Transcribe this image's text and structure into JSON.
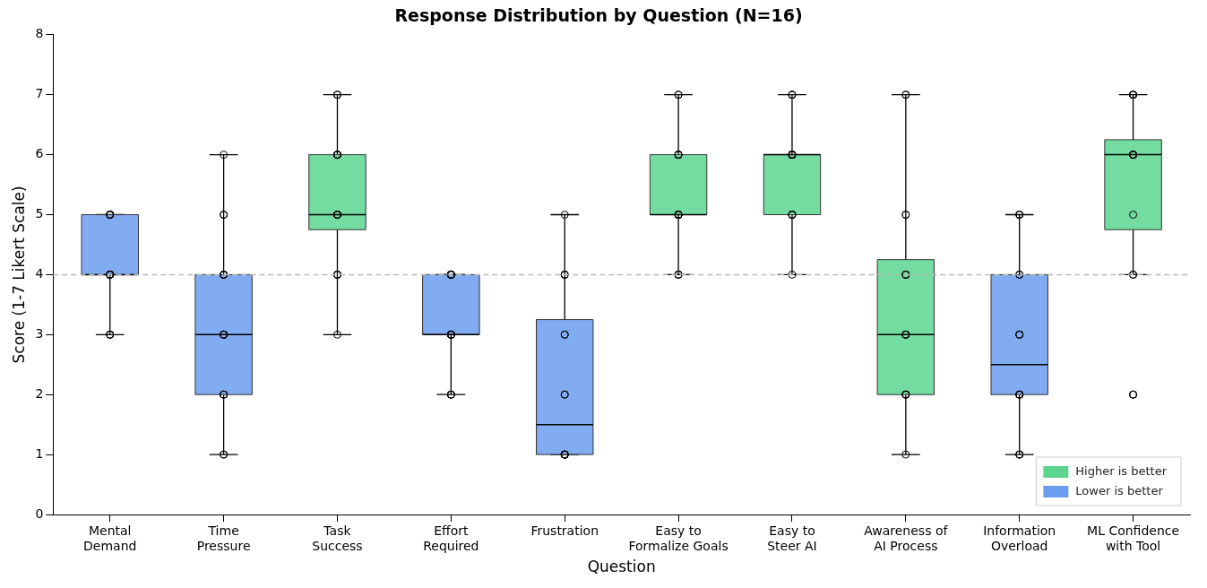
{
  "chart_data": {
    "type": "box",
    "title": "Response Distribution by Question (N=16)",
    "xlabel": "Question",
    "ylabel": "Score (1-7 Likert Scale)",
    "categories": [
      "Mental\nDemand",
      "Time\nPressure",
      "Task\nSuccess",
      "Effort\nRequired",
      "Frustration",
      "Easy to\nFormalize Goals",
      "Easy to\nSteer AI",
      "Awareness of\nAI Process",
      "Information\nOverload",
      "ML Confidence\nwith Tool"
    ],
    "ylim": [
      0,
      8
    ],
    "yticks": [
      0,
      1,
      2,
      3,
      4,
      5,
      6,
      7,
      8
    ],
    "grid": false,
    "legend": "bottom right",
    "marker": "circle",
    "ref_lines": [
      {
        "axis": "y",
        "value": 4,
        "color": "#bbbbbb",
        "line_style": "dashed"
      }
    ],
    "series": [
      {
        "name": "Higher is better",
        "color": "#5cd68f",
        "boxes": [
          null,
          null,
          {
            "low": 3,
            "q1": 4.75,
            "median": 5,
            "q3": 6,
            "high": 7
          },
          null,
          null,
          {
            "low": 4,
            "q1": 5,
            "median": 5,
            "q3": 6,
            "high": 7
          },
          {
            "low": 4,
            "q1": 5,
            "median": 6,
            "q3": 6,
            "high": 7
          },
          {
            "low": 1,
            "q1": 2,
            "median": 3,
            "q3": 4.25,
            "high": 7
          },
          null,
          {
            "low": 4,
            "q1": 4.75,
            "median": 6,
            "q3": 6.25,
            "high": 7
          }
        ]
      },
      {
        "name": "Lower is better",
        "color": "#6c9ef0",
        "boxes": [
          {
            "low": 3,
            "q1": 4,
            "median": 4,
            "q3": 5,
            "high": 5
          },
          {
            "low": 1,
            "q1": 2,
            "median": 3,
            "q3": 4,
            "high": 6
          },
          null,
          {
            "low": 2,
            "q1": 3,
            "median": 3,
            "q3": 4,
            "high": 4
          },
          {
            "low": 1,
            "q1": 1,
            "median": 1.5,
            "q3": 3.25,
            "high": 5
          },
          null,
          null,
          null,
          {
            "low": 1,
            "q1": 2,
            "median": 2.5,
            "q3": 4,
            "high": 5
          },
          null
        ]
      },
      {
        "type": "scatter",
        "color": "#000000",
        "x": [
          "Mental\nDemand",
          "Mental\nDemand",
          "Mental\nDemand",
          "Mental\nDemand",
          "Mental\nDemand",
          "Mental\nDemand",
          "Mental\nDemand",
          "Mental\nDemand",
          "Mental\nDemand",
          "Mental\nDemand",
          "Mental\nDemand",
          "Mental\nDemand",
          "Mental\nDemand",
          "Mental\nDemand",
          "Mental\nDemand",
          "Mental\nDemand",
          "Time\nPressure",
          "Time\nPressure",
          "Time\nPressure",
          "Time\nPressure",
          "Time\nPressure",
          "Time\nPressure",
          "Time\nPressure",
          "Time\nPressure",
          "Time\nPressure",
          "Time\nPressure",
          "Time\nPressure",
          "Time\nPressure",
          "Time\nPressure",
          "Time\nPressure",
          "Time\nPressure",
          "Time\nPressure",
          "Task\nSuccess",
          "Task\nSuccess",
          "Task\nSuccess",
          "Task\nSuccess",
          "Task\nSuccess",
          "Task\nSuccess",
          "Task\nSuccess",
          "Task\nSuccess",
          "Task\nSuccess",
          "Task\nSuccess",
          "Task\nSuccess",
          "Task\nSuccess",
          "Task\nSuccess",
          "Task\nSuccess",
          "Task\nSuccess",
          "Task\nSuccess",
          "Effort\nRequired",
          "Effort\nRequired",
          "Effort\nRequired",
          "Effort\nRequired",
          "Effort\nRequired",
          "Effort\nRequired",
          "Effort\nRequired",
          "Effort\nRequired",
          "Effort\nRequired",
          "Effort\nRequired",
          "Effort\nRequired",
          "Effort\nRequired",
          "Effort\nRequired",
          "Effort\nRequired",
          "Effort\nRequired",
          "Effort\nRequired",
          "Frustration",
          "Frustration",
          "Frustration",
          "Frustration",
          "Frustration",
          "Frustration",
          "Frustration",
          "Frustration",
          "Frustration",
          "Frustration",
          "Frustration",
          "Frustration",
          "Frustration",
          "Frustration",
          "Frustration",
          "Frustration",
          "Easy to\nFormalize Goals",
          "Easy to\nFormalize Goals",
          "Easy to\nFormalize Goals",
          "Easy to\nFormalize Goals",
          "Easy to\nFormalize Goals",
          "Easy to\nFormalize Goals",
          "Easy to\nFormalize Goals",
          "Easy to\nFormalize Goals",
          "Easy to\nFormalize Goals",
          "Easy to\nFormalize Goals",
          "Easy to\nFormalize Goals",
          "Easy to\nFormalize Goals",
          "Easy to\nFormalize Goals",
          "Easy to\nFormalize Goals",
          "Easy to\nFormalize Goals",
          "Easy to\nFormalize Goals",
          "Easy to\nSteer AI",
          "Easy to\nSteer AI",
          "Easy to\nSteer AI",
          "Easy to\nSteer AI",
          "Easy to\nSteer AI",
          "Easy to\nSteer AI",
          "Easy to\nSteer AI",
          "Easy to\nSteer AI",
          "Easy to\nSteer AI",
          "Easy to\nSteer AI",
          "Easy to\nSteer AI",
          "Easy to\nSteer AI",
          "Easy to\nSteer AI",
          "Easy to\nSteer AI",
          "Easy to\nSteer AI",
          "Easy to\nSteer AI",
          "Awareness of\nAI Process",
          "Awareness of\nAI Process",
          "Awareness of\nAI Process",
          "Awareness of\nAI Process",
          "Awareness of\nAI Process",
          "Awareness of\nAI Process",
          "Awareness of\nAI Process",
          "Awareness of\nAI Process",
          "Awareness of\nAI Process",
          "Awareness of\nAI Process",
          "Awareness of\nAI Process",
          "Awareness of\nAI Process",
          "Awareness of\nAI Process",
          "Awareness of\nAI Process",
          "Awareness of\nAI Process",
          "Awareness of\nAI Process",
          "Information\nOverload",
          "Information\nOverload",
          "Information\nOverload",
          "Information\nOverload",
          "Information\nOverload",
          "Information\nOverload",
          "Information\nOverload",
          "Information\nOverload",
          "Information\nOverload",
          "Information\nOverload",
          "Information\nOverload",
          "Information\nOverload",
          "Information\nOverload",
          "Information\nOverload",
          "Information\nOverload",
          "Information\nOverload",
          "ML Confidence\nwith Tool",
          "ML Confidence\nwith Tool",
          "ML Confidence\nwith Tool",
          "ML Confidence\nwith Tool",
          "ML Confidence\nwith Tool",
          "ML Confidence\nwith Tool",
          "ML Confidence\nwith Tool",
          "ML Confidence\nwith Tool",
          "ML Confidence\nwith Tool",
          "ML Confidence\nwith Tool",
          "ML Confidence\nwith Tool",
          "ML Confidence\nwith Tool",
          "ML Confidence\nwith Tool",
          "ML Confidence\nwith Tool",
          "ML Confidence\nwith Tool",
          "ML Confidence\nwith Tool"
        ],
        "values": [
          3,
          3,
          3,
          4,
          4,
          4,
          4,
          4,
          4,
          4,
          5,
          5,
          5,
          5,
          5,
          5,
          1,
          1,
          2,
          2,
          2,
          3,
          3,
          3,
          3,
          4,
          4,
          4,
          4,
          5,
          5,
          6,
          3,
          4,
          4,
          4,
          5,
          5,
          5,
          5,
          5,
          6,
          6,
          6,
          6,
          6,
          7,
          7,
          2,
          2,
          2,
          3,
          3,
          3,
          3,
          3,
          3,
          4,
          4,
          4,
          4,
          4,
          4,
          4,
          1,
          1,
          1,
          1,
          1,
          1,
          1,
          1,
          2,
          2,
          3,
          3,
          4,
          4,
          4,
          5,
          4,
          4,
          4,
          5,
          5,
          5,
          5,
          5,
          5,
          6,
          6,
          6,
          6,
          6,
          7,
          7,
          4,
          5,
          5,
          5,
          5,
          6,
          6,
          6,
          6,
          6,
          6,
          6,
          6,
          7,
          7,
          7,
          1,
          2,
          2,
          2,
          2,
          3,
          3,
          3,
          3,
          4,
          4,
          4,
          5,
          5,
          7,
          7,
          1,
          1,
          1,
          2,
          2,
          2,
          2,
          2,
          3,
          3,
          3,
          4,
          4,
          5,
          5,
          5,
          2,
          2,
          2,
          4,
          4,
          5,
          6,
          6,
          6,
          6,
          6,
          6,
          7,
          7,
          7,
          7
        ]
      }
    ]
  }
}
